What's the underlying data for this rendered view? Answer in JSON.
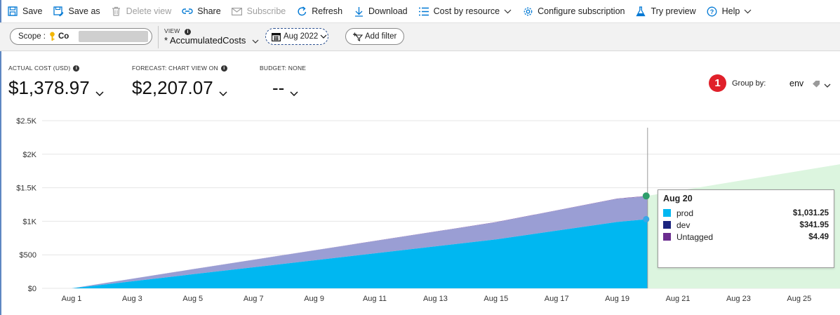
{
  "toolbar": {
    "save": "Save",
    "save_as": "Save as",
    "delete_view": "Delete view",
    "share": "Share",
    "subscribe": "Subscribe",
    "refresh": "Refresh",
    "download": "Download",
    "cost_by_resource": "Cost by resource",
    "configure_subscription": "Configure subscription",
    "try_preview": "Try preview",
    "help": "Help"
  },
  "filters": {
    "scope_label": "Scope :",
    "scope_value": "Co",
    "view_label": "VIEW",
    "view_value": "* AccumulatedCosts",
    "date_range": "Aug 2022",
    "add_filter": "Add filter"
  },
  "kpis": {
    "actual_label": "ACTUAL COST (USD)",
    "actual_value": "$1,378.97",
    "forecast_label": "FORECAST: CHART VIEW ON",
    "forecast_value": "$2,207.07",
    "budget_label": "BUDGET: NONE",
    "budget_value": "--"
  },
  "callout_number": "1",
  "group_by": {
    "label": "Group by:",
    "value": "env"
  },
  "colors": {
    "prod": "#00b7f1",
    "dev": "#1a237e",
    "untagged": "#6b2d8f",
    "stacked_dev_fill": "#9a9ed4",
    "forecast": "#dcf5df",
    "accent": "#0078d4"
  },
  "tooltip": {
    "date": "Aug 20",
    "rows": [
      {
        "name": "prod",
        "amount": "$1,031.25"
      },
      {
        "name": "dev",
        "amount": "$341.95"
      },
      {
        "name": "Untagged",
        "amount": "$4.49"
      }
    ]
  },
  "chart_data": {
    "type": "area",
    "ylim": [
      0,
      2500
    ],
    "yticks": [
      "$2.5K",
      "$2K",
      "$1.5K",
      "$1K",
      "$500",
      "$0"
    ],
    "xticks": [
      "Aug 1",
      "Aug 3",
      "Aug 5",
      "Aug 7",
      "Aug 9",
      "Aug 11",
      "Aug 13",
      "Aug 15",
      "Aug 17",
      "Aug 19",
      "Aug 21",
      "Aug 23",
      "Aug 25"
    ],
    "x": [
      "Aug 1",
      "Aug 5",
      "Aug 10",
      "Aug 15",
      "Aug 19",
      "Aug 20"
    ],
    "series": [
      {
        "name": "prod",
        "values": [
          0,
          210,
          470,
          730,
          990,
          1031.25
        ]
      },
      {
        "name": "dev",
        "values": [
          0,
          75,
          165,
          255,
          345,
          341.95
        ]
      },
      {
        "name": "Untagged",
        "values": [
          0,
          1,
          2,
          3,
          4,
          4.49
        ]
      }
    ],
    "forecast": {
      "x": [
        "Aug 20",
        "Aug 26"
      ],
      "values": [
        1378.97,
        1850
      ]
    }
  }
}
